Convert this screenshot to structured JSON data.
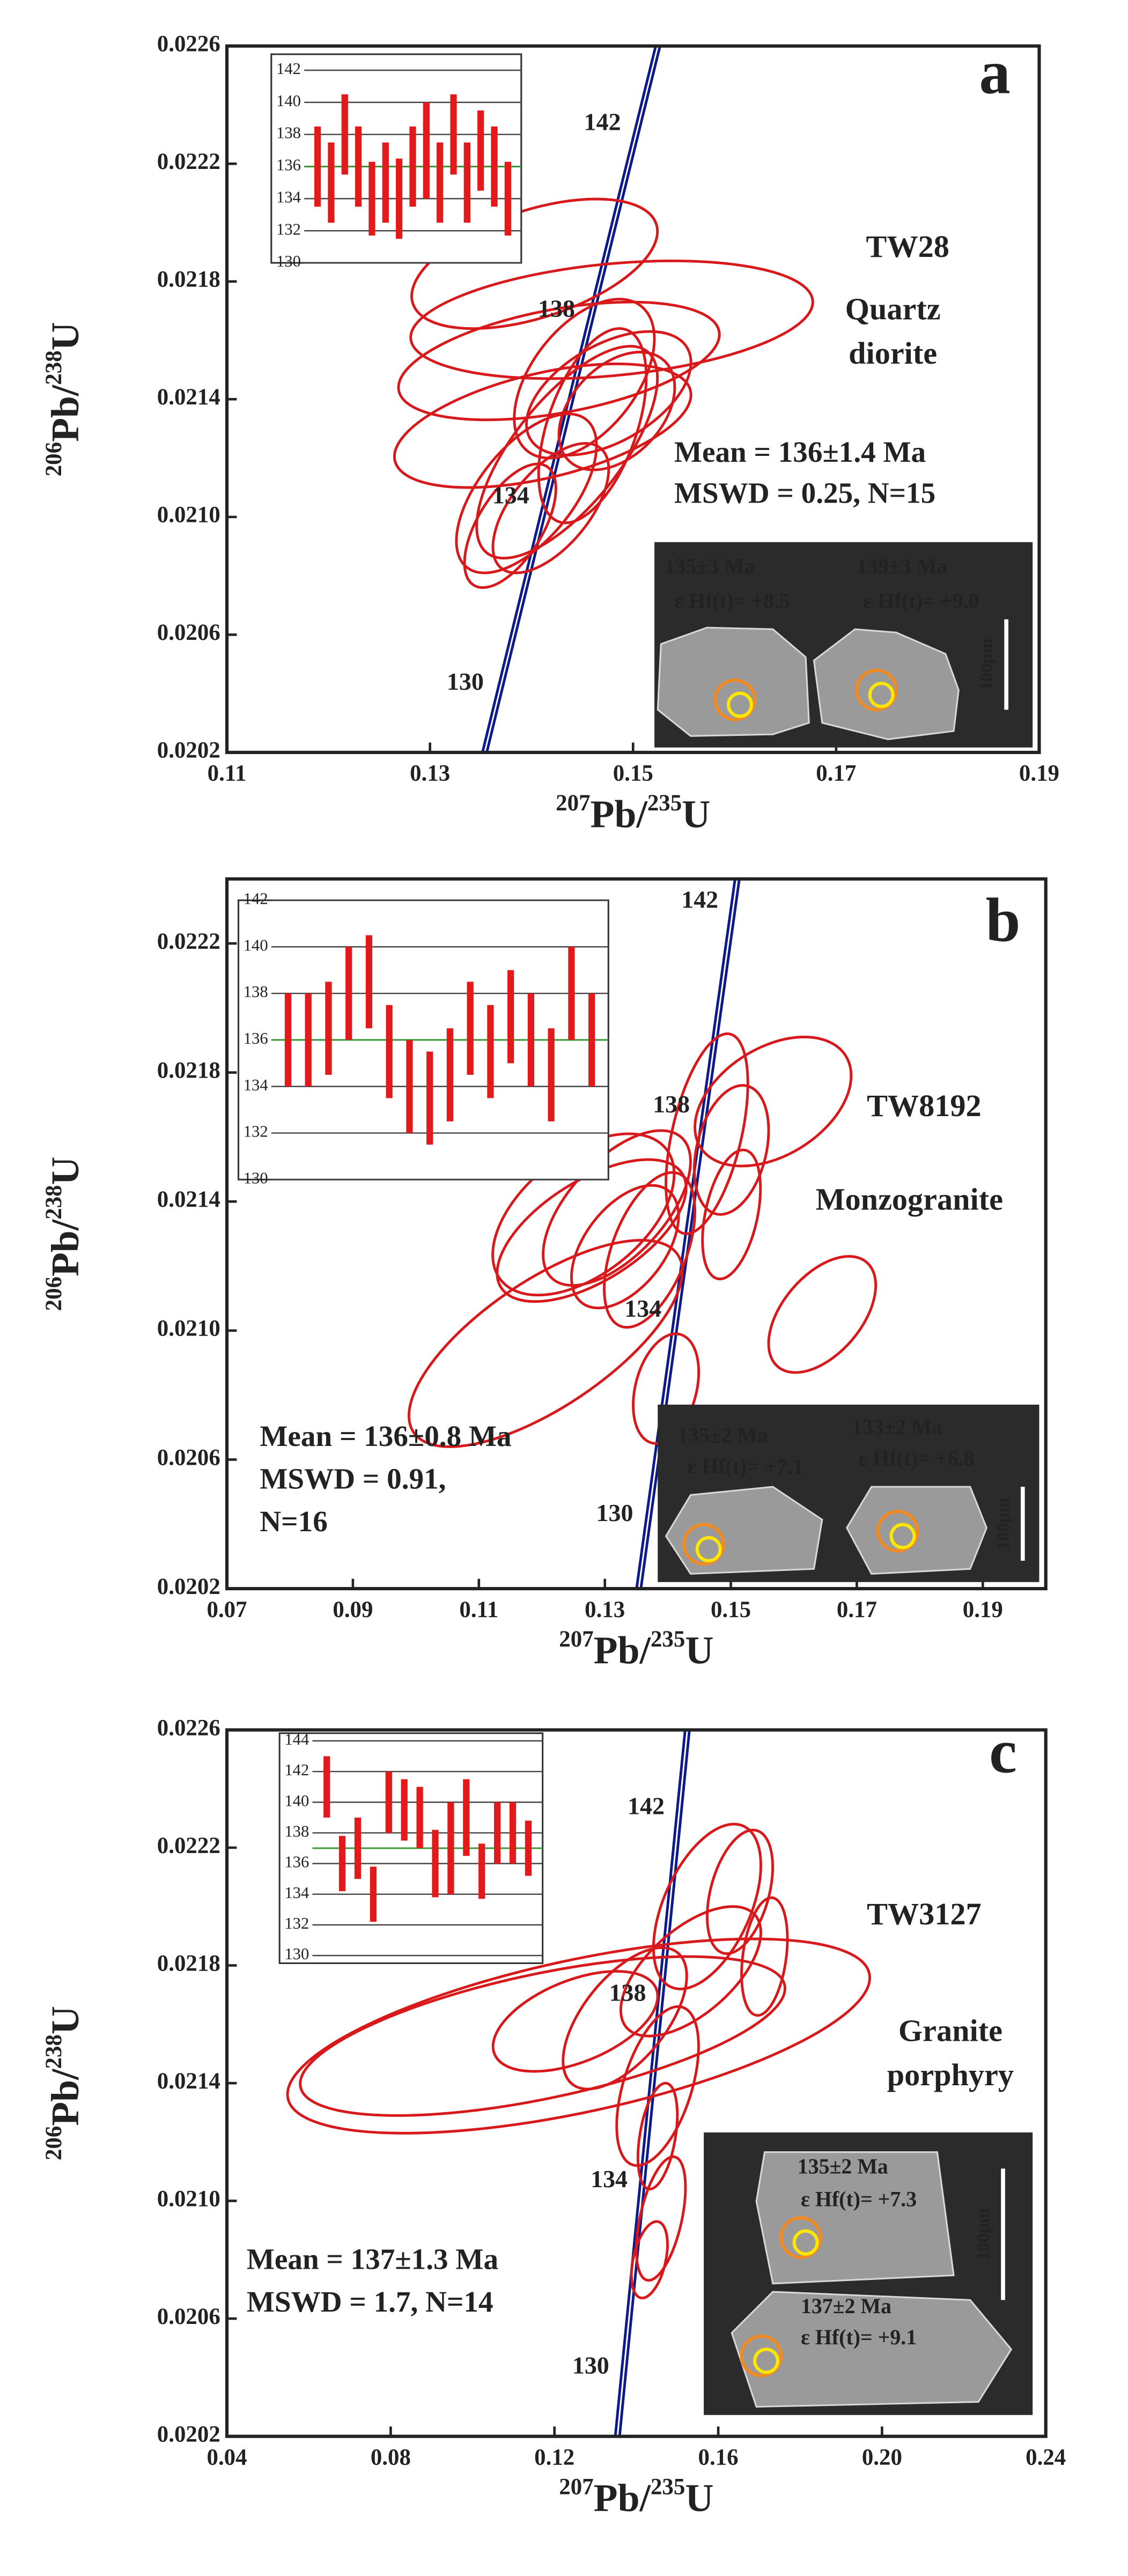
{
  "chart_data": [
    {
      "type": "concordia",
      "panel": "a",
      "sample": "TW28",
      "rock": [
        "Quartz",
        "diorite"
      ],
      "stats": [
        "Mean = 136±1.4 Ma",
        "MSWD = 0.25, N=15"
      ],
      "xlabel": [
        "207",
        "Pb/",
        "235",
        "U"
      ],
      "ylabel": [
        "206",
        "Pb/",
        "238",
        "U"
      ],
      "xlim": [
        0.11,
        0.19
      ],
      "ylim": [
        0.0202,
        0.0226
      ],
      "xticks": [
        0.11,
        0.13,
        0.15,
        0.17,
        0.19
      ],
      "yticks": [
        0.0202,
        0.0206,
        {
          "value": 0.021,
          "label": "0.0210"
        },
        0.0214,
        0.0218,
        0.0222,
        0.0226
      ],
      "concordia_ages": [
        130,
        134,
        138,
        142
      ],
      "color": "#d7191c",
      "concordia_color": "#0d1a8a",
      "ellipses": {
        "x": [
          0.1403,
          0.1479,
          0.1427,
          0.1411,
          0.1435,
          0.1395,
          0.146,
          0.1484,
          0.1419,
          0.1476,
          0.1379,
          0.1452
        ],
        "y": [
          0.02186,
          0.02167,
          0.02153,
          0.02131,
          0.02122,
          0.02108,
          0.02131,
          0.02136,
          0.02103,
          0.02142,
          0.02097,
          0.02147
        ],
        "x_err": [
          0.0121,
          0.0198,
          0.0158,
          0.0146,
          0.0089,
          0.0069,
          0.0053,
          0.0057,
          0.0057,
          0.0081,
          0.0045,
          0.0069
        ],
        "y_err": [
          0.00022,
          0.0002,
          0.0002,
          0.00021,
          0.00036,
          0.00027,
          0.00033,
          0.0002,
          0.00022,
          0.00021,
          0.00021,
          0.00027
        ],
        "rho": [
          0.5,
          0.3,
          0.45,
          0.5,
          0.7,
          0.6,
          0.5,
          0.4,
          0.6,
          0.5,
          0.6,
          0.5
        ]
      },
      "inset": {
        "ylim": [
          130,
          143
        ],
        "yticks": [
          130,
          132,
          134,
          136,
          138,
          140,
          142
        ],
        "mean": 136,
        "color": "#e31a1c",
        "values": [
          136,
          135,
          138,
          136,
          134,
          135,
          134,
          136,
          137,
          135,
          138,
          135,
          137,
          136,
          134
        ],
        "errors": [
          2.5,
          2.5,
          2.5,
          2.5,
          2.3,
          2.5,
          2.5,
          2.5,
          3,
          2.5,
          2.5,
          2.5,
          2.5,
          2.5,
          2.3
        ]
      },
      "cl_image": {
        "spots": [
          {
            "age": "135±3 Ma",
            "hf": "ε Hf(t)= +8.5"
          },
          {
            "age": "139±3 Ma",
            "hf": "ε Hf(t)= +9.0"
          }
        ],
        "scale_bar": "100μm"
      }
    },
    {
      "type": "concordia",
      "panel": "b",
      "sample": "TW8192",
      "rock": [
        "Monzogranite"
      ],
      "stats": [
        "Mean = 136±0.8 Ma",
        "MSWD = 0.91,",
        "N=16"
      ],
      "xlabel": [
        "207",
        "Pb/",
        "235",
        "U"
      ],
      "ylabel": [
        "206",
        "Pb/",
        "238",
        "U"
      ],
      "xlim": [
        0.07,
        0.2
      ],
      "ylim": [
        0.0202,
        0.0224
      ],
      "xticks": [
        0.07,
        0.09,
        0.11,
        0.13,
        0.15,
        0.17,
        0.19
      ],
      "yticks": [
        0.0202,
        0.0206,
        {
          "value": 0.021,
          "label": "0.0210"
        },
        0.0214,
        0.0218,
        0.0222
      ],
      "concordia_ages": [
        130,
        134,
        138,
        142
      ],
      "color": "#d7191c",
      "concordia_color": "#0d1a8a",
      "ellipses": {
        "x": [
          0.1206,
          0.1266,
          0.1279,
          0.1319,
          0.1371,
          0.1462,
          0.1567,
          0.1501,
          0.1645,
          0.1397,
          0.1501,
          0.1332
        ],
        "y": [
          0.02096,
          0.02136,
          0.02131,
          0.02138,
          0.02125,
          0.02161,
          0.02171,
          0.02136,
          0.02105,
          0.02082,
          0.02156,
          0.02126
        ],
        "x_err": [
          0.0217,
          0.0144,
          0.015,
          0.0117,
          0.0072,
          0.0065,
          0.0124,
          0.0046,
          0.0085,
          0.0052,
          0.0059,
          0.0085
        ],
        "y_err": [
          0.00032,
          0.00025,
          0.00022,
          0.00024,
          0.00024,
          0.00031,
          0.0002,
          0.0002,
          0.00018,
          0.00017,
          0.0002,
          0.00019
        ],
        "rho": [
          0.7,
          0.5,
          0.6,
          0.6,
          0.5,
          0.5,
          0.4,
          0.4,
          0.5,
          0.3,
          0.3,
          0.5
        ]
      },
      "inset": {
        "ylim": [
          130,
          142
        ],
        "yticks": [
          130,
          132,
          134,
          136,
          138,
          140,
          142
        ],
        "mean": 136,
        "color": "#e31a1c",
        "values": [
          136,
          136,
          136.5,
          138,
          138.5,
          135.5,
          134,
          133.5,
          134.5,
          136.5,
          135.5,
          137,
          136,
          134.5,
          138,
          136
        ],
        "errors": [
          2,
          2,
          2,
          2,
          2,
          2,
          2,
          2,
          2,
          2,
          2,
          2,
          2,
          2,
          2,
          2
        ]
      },
      "cl_image": {
        "spots": [
          {
            "age": "135±2 Ma",
            "hf": "ε Hf(t)= +7.1"
          },
          {
            "age": "133±2 Ma",
            "hf": "ε Hf(t)= +6.8"
          }
        ],
        "scale_bar": "100μm"
      }
    },
    {
      "type": "concordia",
      "panel": "c",
      "sample": "TW3127",
      "rock": [
        "Granite",
        "porphyry"
      ],
      "stats": [
        "Mean = 137±1.3 Ma",
        "MSWD = 1.7, N=14"
      ],
      "xlabel": [
        "207",
        "Pb/",
        "235",
        "U"
      ],
      "ylabel": [
        "206",
        "Pb/",
        "238",
        "U"
      ],
      "xlim": [
        0.04,
        0.24
      ],
      "ylim": [
        0.0202,
        0.0226
      ],
      "xticks": [
        0.04,
        0.08,
        0.12,
        0.16,
        {
          "value": 0.2,
          "label": "0.20"
        },
        0.24
      ],
      "yticks": [
        0.0202,
        0.0206,
        {
          "value": 0.021,
          "label": "0.0210"
        },
        0.0214,
        0.0218,
        0.0222,
        0.0226
      ],
      "concordia_ages": [
        130,
        134,
        138,
        142
      ],
      "color": "#d7191c",
      "concordia_color": "#0d1a8a",
      "ellipses": {
        "x": [
          0.1259,
          0.1171,
          0.1573,
          0.1653,
          0.1713,
          0.1533,
          0.1372,
          0.1452,
          0.1452,
          0.146,
          0.1432,
          0.1251
        ],
        "y": [
          0.02156,
          0.02156,
          0.022,
          0.02205,
          0.02183,
          0.02178,
          0.02162,
          0.02139,
          0.02122,
          0.02094,
          0.0208,
          0.02161
        ],
        "x_err": [
          0.0711,
          0.0592,
          0.0131,
          0.008,
          0.0056,
          0.0171,
          0.0151,
          0.01,
          0.0048,
          0.006,
          0.0044,
          0.0201
        ],
        "y_err": [
          0.00033,
          0.00027,
          0.00028,
          0.00021,
          0.0002,
          0.00022,
          0.00024,
          0.00027,
          0.00018,
          0.00021,
          0.00013,
          0.00017
        ],
        "rho": [
          0.6,
          0.6,
          0.5,
          0.4,
          0.3,
          0.6,
          0.6,
          0.5,
          0.4,
          0.5,
          0.4,
          0.5
        ]
      },
      "inset": {
        "ylim": [
          129.5,
          144.5
        ],
        "yticks": [
          130,
          132,
          134,
          136,
          138,
          140,
          142,
          144
        ],
        "mean": 137,
        "color": "#e31a1c",
        "values": [
          141,
          136,
          137,
          134,
          140,
          139.5,
          139,
          136,
          137,
          139,
          135.5,
          138,
          138,
          137
        ],
        "errors": [
          2,
          1.8,
          2,
          1.8,
          2,
          2,
          2,
          2.2,
          3,
          2.5,
          1.8,
          2,
          2,
          1.8
        ]
      },
      "cl_image": {
        "spots": [
          {
            "age": "135±2 Ma",
            "hf": "ε Hf(t)= +7.3"
          },
          {
            "age": "137±2 Ma",
            "hf": "ε Hf(t)= +9.1"
          }
        ],
        "scale_bar": "100μm"
      }
    }
  ]
}
